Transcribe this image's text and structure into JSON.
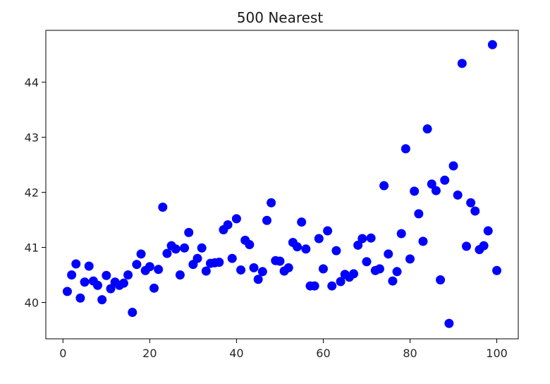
{
  "chart_data": {
    "type": "scatter",
    "title": "500 Nearest",
    "xlabel": "",
    "ylabel": "",
    "xlim": [
      -3.95,
      104.95
    ],
    "ylim": [
      39.34,
      44.94
    ],
    "xticks": [
      0,
      20,
      40,
      60,
      80,
      100
    ],
    "yticks": [
      40,
      41,
      42,
      43,
      44
    ],
    "grid": false,
    "marker_color": "#0000ff",
    "x": [
      1,
      2,
      3,
      4,
      5,
      6,
      7,
      8,
      9,
      10,
      11,
      12,
      13,
      14,
      15,
      16,
      17,
      18,
      19,
      20,
      21,
      22,
      23,
      24,
      25,
      26,
      27,
      28,
      29,
      30,
      31,
      32,
      33,
      34,
      35,
      36,
      37,
      38,
      39,
      40,
      41,
      42,
      43,
      44,
      45,
      46,
      47,
      48,
      49,
      50,
      51,
      52,
      53,
      54,
      55,
      56,
      57,
      58,
      59,
      60,
      61,
      62,
      63,
      64,
      65,
      66,
      67,
      68,
      69,
      70,
      71,
      72,
      73,
      74,
      75,
      76,
      77,
      78,
      79,
      80,
      81,
      82,
      83,
      84,
      85,
      86,
      87,
      88,
      89,
      90,
      91,
      92,
      93,
      94,
      95,
      96,
      97,
      98,
      99,
      100
    ],
    "y": [
      40.2,
      40.5,
      40.7,
      40.08,
      40.37,
      40.66,
      40.39,
      40.31,
      40.05,
      40.49,
      40.25,
      40.37,
      40.31,
      40.35,
      40.5,
      39.82,
      40.69,
      40.88,
      40.58,
      40.65,
      40.26,
      40.6,
      41.73,
      40.89,
      41.03,
      40.97,
      40.5,
      40.99,
      41.27,
      40.69,
      40.8,
      40.99,
      40.57,
      40.71,
      40.72,
      40.73,
      41.32,
      41.41,
      40.8,
      41.52,
      40.59,
      41.13,
      41.05,
      40.63,
      40.42,
      40.56,
      41.49,
      41.81,
      40.76,
      40.75,
      40.57,
      40.63,
      41.09,
      41.01,
      41.46,
      40.97,
      40.3,
      40.3,
      41.16,
      40.61,
      41.3,
      40.3,
      40.94,
      40.38,
      40.51,
      40.46,
      40.52,
      41.04,
      41.16,
      40.74,
      41.17,
      40.58,
      40.61,
      42.12,
      40.88,
      40.39,
      40.56,
      41.25,
      42.79,
      40.79,
      42.02,
      41.61,
      41.11,
      43.15,
      42.15,
      42.03,
      40.41,
      42.22,
      39.62,
      42.48,
      41.95,
      44.34,
      41.02,
      41.81,
      41.66,
      40.96,
      41.03,
      41.3,
      44.68,
      40.58
    ]
  }
}
